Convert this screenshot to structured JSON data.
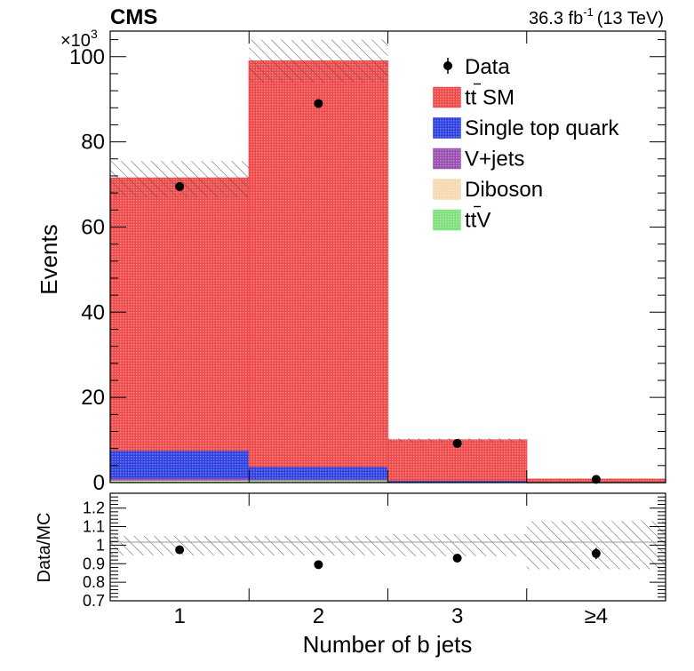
{
  "chart_data": {
    "type": "bar",
    "title": "CMS",
    "lumi": "36.3 fb",
    "lumi_exp": "-1",
    "lumi_energy": "(13 TeV)",
    "exponent_base": "×10",
    "exponent_power": "3",
    "xlabel": "Number of b jets",
    "ylabel": "Events",
    "ratio_ylabel": "Data/MC",
    "categories": [
      "1",
      "2",
      "3",
      "≥4"
    ],
    "ylim": [
      0,
      106
    ],
    "yticks": [
      0,
      20,
      40,
      60,
      80,
      100
    ],
    "ratio_ylim": [
      0.7,
      1.28
    ],
    "ratio_yticks": [
      0.7,
      0.8,
      0.9,
      1.0,
      1.1,
      1.2
    ],
    "ratio_ytick_labels": [
      "0.7",
      "0.8",
      "0.9",
      "1",
      "1.1",
      "1.2"
    ],
    "series": [
      {
        "name": "tt̄V",
        "label_main": "tt",
        "label_rest": "V",
        "color": "#7de07d",
        "values": [
          0.4,
          0.5,
          0.15,
          0.05
        ]
      },
      {
        "name": "Diboson",
        "label_main": "Diboson",
        "label_rest": "",
        "color": "#f5d9b0",
        "values": [
          0.2,
          0.1,
          0.02,
          0.0
        ]
      },
      {
        "name": "V+jets",
        "label_main": "V+jets",
        "label_rest": "",
        "color": "#9a4fb0",
        "values": [
          0.5,
          0.3,
          0.05,
          0.0
        ]
      },
      {
        "name": "Single top quark",
        "label_main": "Single top quark",
        "label_rest": "",
        "color": "#2d3fe0",
        "values": [
          6.5,
          2.9,
          0.3,
          0.05
        ]
      },
      {
        "name": "tt̄ SM",
        "label_main": "tt",
        "label_rest": " SM",
        "color": "#ef4a4a",
        "values": [
          63.9,
          95.2,
          9.5,
          0.7
        ]
      }
    ],
    "total_mc": [
      71.5,
      99.0,
      10.0,
      0.8
    ],
    "mc_unc_up": [
      75.5,
      104.0,
      10.4,
      0.85
    ],
    "mc_unc_down": [
      67.0,
      94.0,
      9.5,
      0.7
    ],
    "data": {
      "name": "Data",
      "values": [
        69.5,
        89.0,
        9.2,
        0.75
      ],
      "errors": [
        0.3,
        0.3,
        0.1,
        0.03
      ]
    },
    "ratio": {
      "values": [
        0.975,
        0.895,
        0.93,
        0.955
      ],
      "errors": [
        0.005,
        0.004,
        0.01,
        0.03
      ],
      "band_up": [
        1.05,
        1.05,
        1.06,
        1.13
      ],
      "band_down": [
        0.945,
        0.945,
        0.94,
        0.87
      ]
    }
  }
}
